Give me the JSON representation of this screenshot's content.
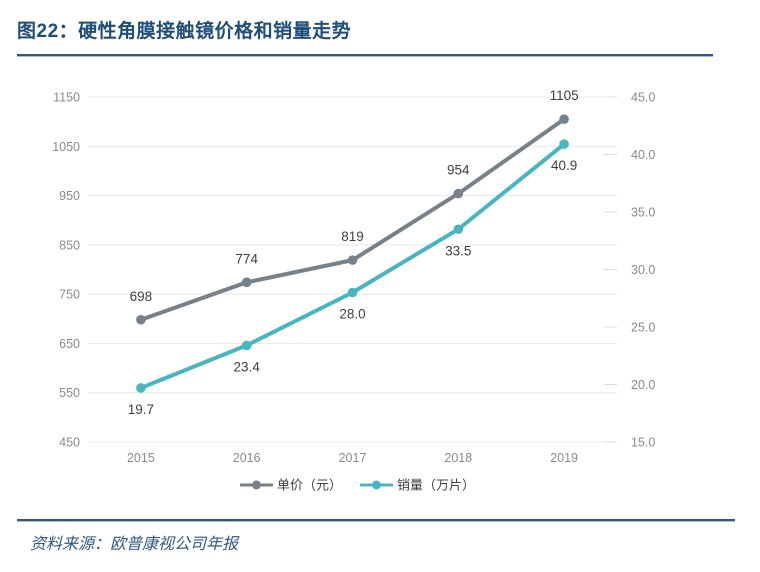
{
  "header": {
    "title": "图22：硬性角膜接触镜价格和销量走势"
  },
  "footer": {
    "source": "资料来源：欧普康视公司年报"
  },
  "chart_data": {
    "type": "line",
    "title": "硬性角膜接触镜价格和销量走势",
    "categories": [
      "2015",
      "2016",
      "2017",
      "2018",
      "2019"
    ],
    "series": [
      {
        "id": "unit-price",
        "name": "单价（元）",
        "axis": "left",
        "color": "#75828B",
        "values": [
          698,
          774,
          819,
          954,
          1105
        ],
        "labels": [
          "698",
          "774",
          "819",
          "954",
          "1105"
        ],
        "label_position": "above"
      },
      {
        "id": "sales-volume",
        "name": "销量（万片）",
        "axis": "right",
        "color": "#48B5C3",
        "values": [
          19.7,
          23.4,
          28.0,
          33.5,
          40.9
        ],
        "labels": [
          "19.7",
          "23.4",
          "28.0",
          "33.5",
          "40.9"
        ],
        "label_position": "below"
      }
    ],
    "axes": {
      "left": {
        "min": 450,
        "max": 1150,
        "step": 100,
        "tick_labels": [
          "1150",
          "1050",
          "950",
          "850",
          "750",
          "650",
          "550",
          "450"
        ]
      },
      "right": {
        "min": 15.0,
        "max": 45.0,
        "step": 5.0,
        "tick_labels": [
          "45.0",
          "40.0",
          "35.0",
          "30.0",
          "25.0",
          "20.0",
          "15.0"
        ]
      }
    },
    "grid": true,
    "legend_position": "bottom"
  },
  "colors": {
    "title": "#1F4E79",
    "rule": "#31567E",
    "grid": "#E8E8E8",
    "right_tick": "#DCDCDC",
    "axis_text": "#8A8A8A",
    "data_label": "#3F3F3F",
    "legend_text": "#404040",
    "unit_price": "#75828B",
    "sales_volume": "#48B5C3"
  }
}
